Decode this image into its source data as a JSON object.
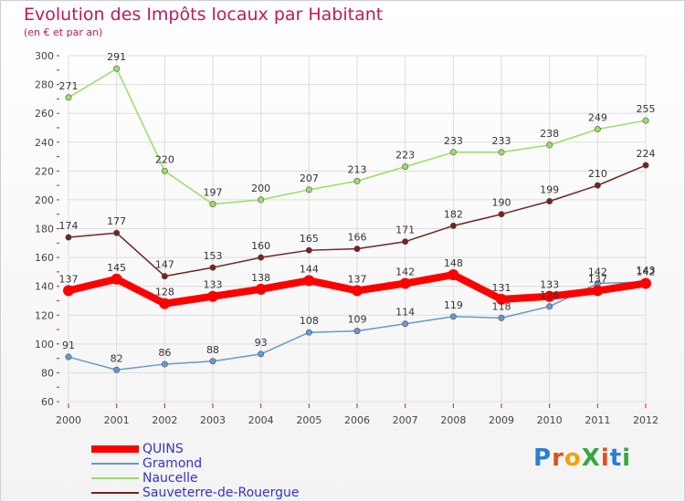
{
  "title": "Evolution des Impôts locaux par Habitant",
  "subtitle": "(en € et par an)",
  "logo": "ProXiti",
  "chart_data": {
    "type": "line",
    "title": "Evolution des Impôts locaux par Habitant",
    "subtitle": "(en € et par an)",
    "x": [
      "2000",
      "2001",
      "2002",
      "2003",
      "2004",
      "2005",
      "2006",
      "2007",
      "2008",
      "2009",
      "2010",
      "2011",
      "2012"
    ],
    "ylim": [
      60,
      300
    ],
    "yticks": [
      60,
      80,
      100,
      120,
      140,
      160,
      180,
      200,
      220,
      240,
      260,
      280,
      300
    ],
    "grid": true,
    "legend_position": "bottom-left",
    "series": [
      {
        "name": "QUINS",
        "color": "#ff0000",
        "values": [
          137,
          145,
          128,
          133,
          138,
          144,
          137,
          142,
          148,
          131,
          133,
          137,
          142
        ]
      },
      {
        "name": "Gramond",
        "color": "#6699cc",
        "values": [
          91,
          82,
          86,
          88,
          93,
          108,
          109,
          114,
          119,
          118,
          126,
          142,
          143
        ]
      },
      {
        "name": "Naucelle",
        "color": "#99dd66",
        "values": [
          271,
          291,
          220,
          197,
          200,
          207,
          213,
          223,
          233,
          233,
          238,
          249,
          255
        ]
      },
      {
        "name": "Sauveterre-de-Rouergue",
        "color": "#772222",
        "values": [
          174,
          177,
          147,
          153,
          160,
          165,
          166,
          171,
          182,
          190,
          199,
          210,
          224
        ]
      }
    ]
  }
}
